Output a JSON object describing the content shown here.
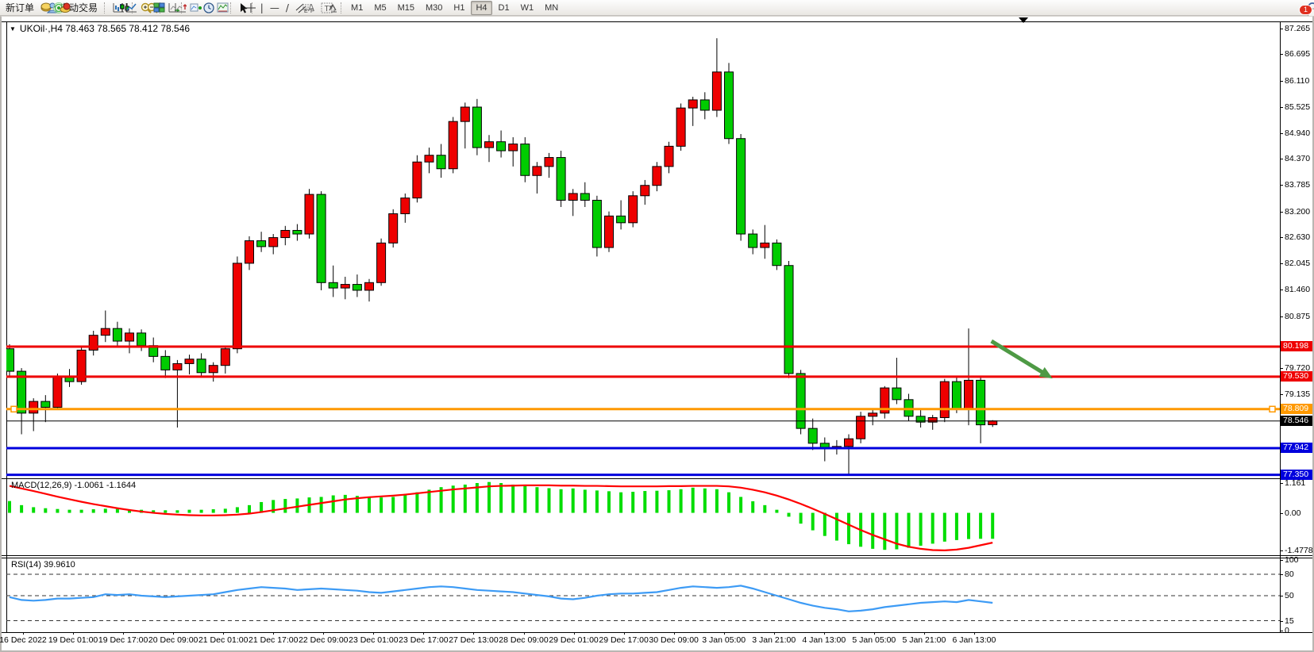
{
  "toolbar": {
    "new_order_label": "新订单",
    "auto_trading_label": "自动交易",
    "timeframes": [
      "M1",
      "M5",
      "M15",
      "M30",
      "H1",
      "H4",
      "D1",
      "W1",
      "MN"
    ],
    "active_timeframe": "H4",
    "notification_badge": "1"
  },
  "chart": {
    "title": "UKOil·,H4  78.463 78.565 78.412 78.546",
    "macd_label": "MACD(12,26,9) -1.0061 -1.1644",
    "rsi_label": "RSI(14) 39.9610"
  },
  "chart_data": {
    "type": "candlestick",
    "symbol": "UKOil",
    "period": "H4",
    "title_ohlc": {
      "open": 78.463,
      "high": 78.565,
      "low": 78.412,
      "close": 78.546
    },
    "ylim": [
      77.272,
      87.406
    ],
    "grid": "off",
    "bull_color": "#ee0000",
    "bear_color": "#00cc00",
    "y_axis_ticks": [
      "87.265",
      "86.695",
      "86.110",
      "85.525",
      "84.940",
      "84.370",
      "83.785",
      "83.200",
      "82.630",
      "82.045",
      "81.460",
      "80.875",
      "79.720",
      "79.135"
    ],
    "x_axis_labels": [
      "16 Dec 2022",
      "19 Dec 01:00",
      "19 Dec 17:00",
      "20 Dec 09:00",
      "21 Dec 01:00",
      "21 Dec 17:00",
      "22 Dec 09:00",
      "23 Dec 01:00",
      "23 Dec 17:00",
      "27 Dec 13:00",
      "28 Dec 09:00",
      "29 Dec 01:00",
      "29 Dec 17:00",
      "30 Dec 09:00",
      "3 Jan 05:00",
      "3 Jan 21:00",
      "4 Jan 13:00",
      "5 Jan 05:00",
      "5 Jan 21:00",
      "6 Jan 13:00"
    ],
    "candles": [
      [
        80.15,
        80.25,
        79.55,
        79.65
      ],
      [
        79.65,
        79.72,
        78.25,
        78.72
      ],
      [
        78.72,
        79.05,
        78.32,
        78.98
      ],
      [
        78.98,
        79.12,
        78.52,
        78.85
      ],
      [
        78.85,
        79.6,
        78.8,
        79.52
      ],
      [
        79.52,
        79.7,
        79.3,
        79.42
      ],
      [
        79.42,
        80.2,
        79.35,
        80.12
      ],
      [
        80.12,
        80.55,
        80.0,
        80.45
      ],
      [
        80.45,
        81.0,
        80.3,
        80.6
      ],
      [
        80.6,
        80.75,
        80.2,
        80.32
      ],
      [
        80.32,
        80.6,
        80.05,
        80.5
      ],
      [
        80.5,
        80.58,
        80.1,
        80.22
      ],
      [
        80.22,
        80.4,
        79.85,
        79.98
      ],
      [
        79.98,
        80.12,
        79.5,
        79.68
      ],
      [
        79.68,
        79.9,
        78.4,
        79.82
      ],
      [
        79.82,
        80.02,
        79.58,
        79.92
      ],
      [
        79.92,
        80.05,
        79.52,
        79.62
      ],
      [
        79.62,
        79.85,
        79.42,
        79.78
      ],
      [
        79.78,
        80.2,
        79.6,
        80.15
      ],
      [
        80.15,
        82.2,
        80.05,
        82.05
      ],
      [
        82.05,
        82.65,
        81.9,
        82.55
      ],
      [
        82.55,
        82.75,
        82.3,
        82.42
      ],
      [
        82.42,
        82.7,
        82.25,
        82.62
      ],
      [
        82.62,
        82.88,
        82.45,
        82.78
      ],
      [
        82.78,
        82.92,
        82.55,
        82.7
      ],
      [
        82.7,
        83.7,
        82.6,
        83.58
      ],
      [
        83.58,
        83.65,
        81.45,
        81.62
      ],
      [
        81.62,
        82.0,
        81.3,
        81.5
      ],
      [
        81.5,
        81.75,
        81.25,
        81.58
      ],
      [
        81.58,
        81.8,
        81.3,
        81.45
      ],
      [
        81.45,
        81.7,
        81.2,
        81.62
      ],
      [
        81.62,
        82.6,
        81.55,
        82.5
      ],
      [
        82.5,
        83.25,
        82.4,
        83.15
      ],
      [
        83.15,
        83.6,
        82.95,
        83.5
      ],
      [
        83.5,
        84.45,
        83.4,
        84.3
      ],
      [
        84.3,
        84.62,
        84.05,
        84.45
      ],
      [
        84.45,
        84.7,
        83.95,
        84.15
      ],
      [
        84.15,
        85.3,
        84.05,
        85.2
      ],
      [
        85.2,
        85.62,
        84.6,
        85.52
      ],
      [
        85.52,
        85.7,
        84.45,
        84.62
      ],
      [
        84.62,
        84.9,
        84.3,
        84.75
      ],
      [
        84.75,
        85.0,
        84.4,
        84.55
      ],
      [
        84.55,
        84.85,
        84.2,
        84.7
      ],
      [
        84.7,
        84.85,
        83.85,
        84.0
      ],
      [
        84.0,
        84.3,
        83.6,
        84.2
      ],
      [
        84.2,
        84.5,
        83.95,
        84.4
      ],
      [
        84.4,
        84.55,
        83.3,
        83.45
      ],
      [
        83.45,
        83.7,
        83.1,
        83.6
      ],
      [
        83.6,
        83.85,
        83.3,
        83.45
      ],
      [
        83.45,
        83.55,
        82.2,
        82.4
      ],
      [
        82.4,
        83.2,
        82.3,
        83.1
      ],
      [
        83.1,
        83.45,
        82.8,
        82.95
      ],
      [
        82.95,
        83.65,
        82.85,
        83.55
      ],
      [
        83.55,
        83.9,
        83.35,
        83.78
      ],
      [
        83.78,
        84.3,
        83.65,
        84.2
      ],
      [
        84.2,
        84.75,
        84.05,
        84.65
      ],
      [
        84.65,
        85.6,
        84.55,
        85.5
      ],
      [
        85.5,
        85.75,
        85.1,
        85.68
      ],
      [
        85.68,
        85.85,
        85.25,
        85.45
      ],
      [
        85.45,
        87.05,
        85.3,
        86.3
      ],
      [
        86.3,
        86.5,
        84.7,
        84.82
      ],
      [
        84.82,
        84.92,
        82.55,
        82.7
      ],
      [
        82.7,
        82.8,
        82.25,
        82.4
      ],
      [
        82.4,
        82.9,
        82.15,
        82.5
      ],
      [
        82.5,
        82.58,
        81.9,
        82.0
      ],
      [
        82.0,
        82.1,
        79.5,
        79.6
      ],
      [
        79.6,
        79.68,
        78.25,
        78.38
      ],
      [
        78.38,
        78.6,
        77.9,
        78.05
      ],
      [
        78.05,
        78.18,
        77.65,
        77.95
      ],
      [
        77.95,
        78.12,
        77.8,
        77.98
      ],
      [
        77.98,
        78.25,
        77.36,
        78.15
      ],
      [
        78.15,
        78.75,
        78.05,
        78.65
      ],
      [
        78.65,
        78.82,
        78.45,
        78.72
      ],
      [
        78.72,
        79.32,
        78.6,
        79.28
      ],
      [
        79.28,
        79.95,
        78.92,
        79.02
      ],
      [
        79.02,
        79.15,
        78.55,
        78.65
      ],
      [
        78.65,
        78.8,
        78.4,
        78.52
      ],
      [
        78.52,
        78.68,
        78.35,
        78.62
      ],
      [
        78.62,
        79.48,
        78.52,
        79.42
      ],
      [
        79.42,
        79.52,
        78.72,
        78.82
      ],
      [
        78.82,
        80.6,
        78.45,
        79.45
      ],
      [
        79.45,
        79.55,
        78.05,
        78.46
      ],
      [
        78.463,
        78.565,
        78.412,
        78.546
      ]
    ],
    "horizontal_lines": [
      {
        "price": 80.198,
        "color": "#ee0000",
        "width": 3,
        "badge": "80.198"
      },
      {
        "price": 79.53,
        "color": "#ee0000",
        "width": 3,
        "badge": "79.530"
      },
      {
        "price": 78.809,
        "color": "#ff9900",
        "width": 3,
        "badge": "78.809",
        "handles": true
      },
      {
        "price": 78.546,
        "color": "#000000",
        "width": 1,
        "badge": "78.546"
      },
      {
        "price": 77.942,
        "color": "#0000dd",
        "width": 3,
        "badge": "77.942"
      },
      {
        "price": 77.35,
        "color": "#0000dd",
        "width": 3,
        "badge": "77.350"
      }
    ],
    "annotation_arrow": {
      "bar_from": 81.9,
      "price_from": 80.32,
      "bar_to": 87.0,
      "price_to": 79.49,
      "color": "#4e9a45"
    },
    "macd": {
      "label": "MACD(12,26,9)",
      "value": -1.0061,
      "signal": -1.1644,
      "ylim": [
        -1.65,
        1.314
      ],
      "axis_ticks": [
        "1.161",
        "0.00",
        "-1.4778"
      ],
      "histogram_color": "#00dd00",
      "line_color": "#ff0000",
      "histogram": [
        0.46,
        0.3,
        0.22,
        0.18,
        0.15,
        0.12,
        0.12,
        0.14,
        0.16,
        0.15,
        0.13,
        0.12,
        0.1,
        0.1,
        0.1,
        0.12,
        0.12,
        0.14,
        0.16,
        0.22,
        0.3,
        0.42,
        0.5,
        0.54,
        0.56,
        0.6,
        0.62,
        0.68,
        0.7,
        0.66,
        0.62,
        0.6,
        0.62,
        0.7,
        0.8,
        0.9,
        1.0,
        1.06,
        1.1,
        1.16,
        1.2,
        1.16,
        1.1,
        1.05,
        1.0,
        0.96,
        0.92,
        0.95,
        0.9,
        0.87,
        0.84,
        0.8,
        0.82,
        0.85,
        0.86,
        0.88,
        0.92,
        0.98,
        0.95,
        0.92,
        0.8,
        0.62,
        0.45,
        0.3,
        0.12,
        -0.15,
        -0.42,
        -0.68,
        -0.9,
        -1.08,
        -1.22,
        -1.32,
        -1.4,
        -1.44,
        -1.42,
        -1.36,
        -1.28,
        -1.2,
        -1.12,
        -1.06,
        -1.02,
        -1.01,
        -1.01
      ],
      "signal_line": [
        1.05,
        0.95,
        0.85,
        0.74,
        0.63,
        0.53,
        0.43,
        0.34,
        0.26,
        0.18,
        0.11,
        0.05,
        0.0,
        -0.04,
        -0.07,
        -0.09,
        -0.1,
        -0.1,
        -0.09,
        -0.07,
        -0.03,
        0.03,
        0.1,
        0.17,
        0.24,
        0.31,
        0.38,
        0.45,
        0.52,
        0.57,
        0.61,
        0.64,
        0.67,
        0.71,
        0.76,
        0.81,
        0.86,
        0.91,
        0.95,
        0.99,
        1.03,
        1.05,
        1.06,
        1.07,
        1.07,
        1.07,
        1.06,
        1.06,
        1.05,
        1.05,
        1.04,
        1.03,
        1.03,
        1.03,
        1.03,
        1.04,
        1.04,
        1.05,
        1.05,
        1.05,
        1.03,
        0.98,
        0.9,
        0.8,
        0.67,
        0.52,
        0.35,
        0.16,
        -0.04,
        -0.25,
        -0.46,
        -0.67,
        -0.86,
        -1.03,
        -1.2,
        -1.32,
        -1.4,
        -1.45,
        -1.46,
        -1.43,
        -1.36,
        -1.26,
        -1.16
      ]
    },
    "rsi": {
      "label": "RSI(14)",
      "value": 39.961,
      "levels": [
        80,
        50,
        15
      ],
      "axis_ticks": [
        "100",
        "80",
        "50",
        "15",
        "0"
      ],
      "color": "#3d9bf5",
      "values": [
        48,
        44,
        43,
        44,
        46,
        46,
        47,
        48,
        52,
        51,
        52,
        50,
        49,
        48,
        49,
        50,
        51,
        52,
        55,
        58,
        60,
        62,
        61,
        60,
        58,
        59,
        60,
        59,
        58,
        57,
        55,
        54,
        56,
        58,
        60,
        62,
        63,
        62,
        60,
        58,
        57,
        56,
        55,
        53,
        51,
        49,
        46,
        45,
        47,
        50,
        52,
        53,
        53,
        54,
        55,
        58,
        61,
        63,
        62,
        61,
        62,
        64,
        60,
        55,
        50,
        45,
        40,
        36,
        33,
        31,
        28,
        29,
        31,
        34,
        36,
        38,
        40,
        41,
        42,
        41,
        44,
        42,
        40
      ]
    }
  }
}
